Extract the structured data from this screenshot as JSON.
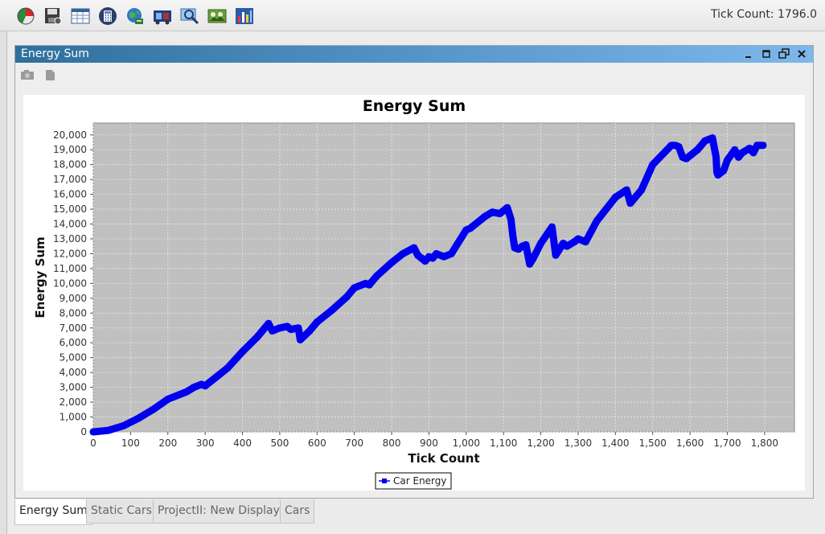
{
  "toolbar": {
    "tools": [
      {
        "name": "pie-chart-icon"
      },
      {
        "name": "save-icon"
      },
      {
        "name": "table-icon"
      },
      {
        "name": "calculator-icon"
      },
      {
        "name": "globe-icon"
      },
      {
        "name": "film-icon"
      },
      {
        "name": "magnifier-icon"
      },
      {
        "name": "image-icon"
      },
      {
        "name": "bar-chart-icon"
      }
    ],
    "tick_count_text": "Tick Count: 1796.0"
  },
  "frame": {
    "title": "Energy Sum",
    "controls": [
      "minimize-icon",
      "maximize-icon",
      "restore-icon",
      "close-icon"
    ],
    "tools": [
      "camera-icon",
      "export-icon"
    ]
  },
  "chart_data": {
    "type": "line",
    "title": "Energy Sum",
    "xlabel": "Tick Count",
    "ylabel": "Energy Sum",
    "xlim": [
      0,
      1880
    ],
    "ylim": [
      0,
      20800
    ],
    "xticks": [
      0,
      100,
      200,
      300,
      400,
      500,
      600,
      700,
      800,
      900,
      1000,
      1100,
      1200,
      1300,
      1400,
      1500,
      1600,
      1700,
      1800
    ],
    "yticks": [
      0,
      1000,
      2000,
      3000,
      4000,
      5000,
      6000,
      7000,
      8000,
      9000,
      10000,
      11000,
      12000,
      13000,
      14000,
      15000,
      16000,
      17000,
      18000,
      19000,
      20000
    ],
    "grid": true,
    "background": "#c0c0c0",
    "legend_position": "bottom-center",
    "series": [
      {
        "name": "Car Energy",
        "color": "#0000ee",
        "x": [
          0,
          40,
          80,
          120,
          160,
          200,
          210,
          250,
          270,
          290,
          300,
          330,
          360,
          400,
          440,
          470,
          480,
          500,
          520,
          530,
          550,
          555,
          580,
          600,
          640,
          680,
          700,
          730,
          740,
          760,
          800,
          830,
          860,
          870,
          880,
          890,
          900,
          910,
          920,
          940,
          960,
          1000,
          1010,
          1050,
          1070,
          1090,
          1110,
          1120,
          1125,
          1130,
          1140,
          1150,
          1160,
          1170,
          1180,
          1200,
          1230,
          1240,
          1260,
          1270,
          1290,
          1300,
          1320,
          1350,
          1400,
          1430,
          1440,
          1470,
          1500,
          1550,
          1560,
          1570,
          1580,
          1590,
          1600,
          1620,
          1640,
          1660,
          1670,
          1672,
          1675,
          1690,
          1700,
          1720,
          1730,
          1740,
          1760,
          1770,
          1780,
          1796
        ],
        "y": [
          0,
          100,
          400,
          900,
          1500,
          2200,
          2300,
          2700,
          3000,
          3200,
          3100,
          3700,
          4300,
          5400,
          6400,
          7300,
          6800,
          7000,
          7100,
          6900,
          7000,
          6200,
          6800,
          7400,
          8200,
          9100,
          9700,
          10000,
          9900,
          10500,
          11400,
          12000,
          12400,
          11900,
          11700,
          11500,
          11800,
          11700,
          12000,
          11800,
          12000,
          13600,
          13700,
          14500,
          14800,
          14700,
          15100,
          14300,
          13200,
          12400,
          12300,
          12500,
          12600,
          11300,
          11700,
          12700,
          13800,
          11900,
          12700,
          12500,
          12800,
          13000,
          12800,
          14200,
          15800,
          16300,
          15400,
          16300,
          18000,
          19300,
          19300,
          19200,
          18500,
          18400,
          18600,
          19000,
          19600,
          19800,
          18500,
          17500,
          17300,
          17600,
          18300,
          19000,
          18500,
          18800,
          19100,
          18800,
          19300,
          19300
        ]
      }
    ]
  },
  "tabs": [
    {
      "label": "Energy Sum",
      "active": true
    },
    {
      "label": "Static Cars",
      "active": false
    },
    {
      "label": "ProjectII: New Display",
      "active": false
    },
    {
      "label": "Cars",
      "active": false
    }
  ]
}
